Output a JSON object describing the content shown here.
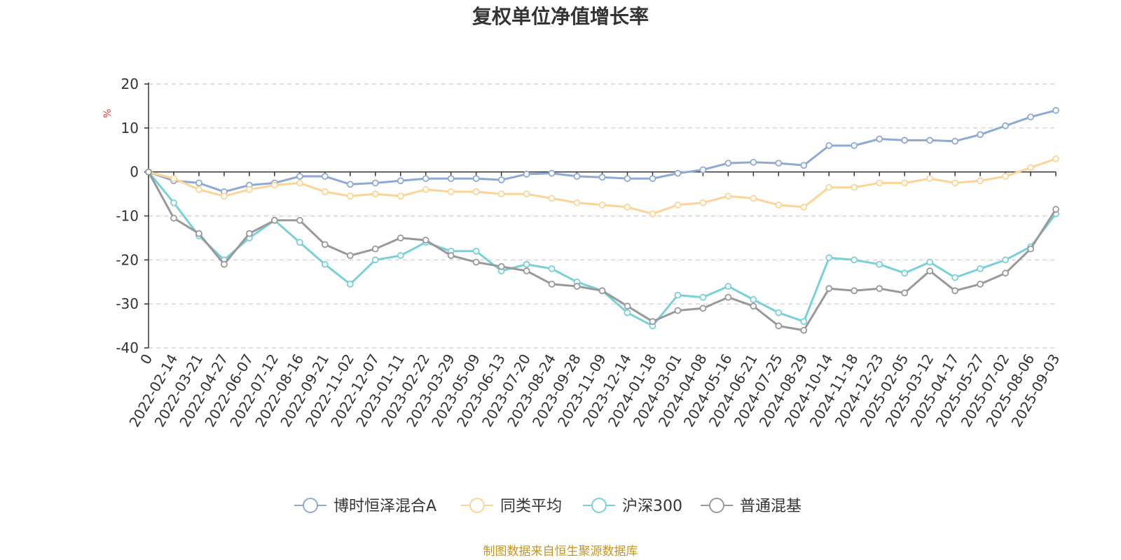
{
  "chart_data": {
    "type": "line",
    "title": "复权单位净值增长率",
    "ylabel": "%",
    "ylim": [
      -40,
      20
    ],
    "yticks": [
      20,
      10,
      0,
      -10,
      -20,
      -30,
      -40
    ],
    "grid": true,
    "legend_position": "bottom",
    "categories": [
      "0",
      "2022-02-14",
      "2022-03-21",
      "2022-04-27",
      "2022-06-07",
      "2022-07-12",
      "2022-08-16",
      "2022-09-21",
      "2022-11-02",
      "2022-12-07",
      "2023-01-11",
      "2023-02-22",
      "2023-03-29",
      "2023-05-09",
      "2023-06-13",
      "2023-07-20",
      "2023-08-24",
      "2023-09-28",
      "2023-11-09",
      "2023-12-14",
      "2024-01-18",
      "2024-03-01",
      "2024-04-08",
      "2024-05-16",
      "2024-06-21",
      "2024-07-25",
      "2024-08-29",
      "2024-10-14",
      "2024-11-18",
      "2024-12-23",
      "2025-02-05",
      "2025-03-12",
      "2025-04-17",
      "2025-05-27",
      "2025-07-02",
      "2025-08-06",
      "2025-09-03"
    ],
    "series": [
      {
        "name": "博时恒泽混合A",
        "color": "#8fa9d6",
        "values": [
          0,
          -2.0,
          -2.5,
          -4.5,
          -3.0,
          -2.5,
          -1.0,
          -1.0,
          -2.8,
          -2.5,
          -2.0,
          -1.5,
          -1.5,
          -1.5,
          -1.8,
          -0.5,
          -0.3,
          -1.0,
          -1.2,
          -1.5,
          -1.5,
          -0.3,
          0.5,
          2.0,
          2.2,
          2.0,
          1.5,
          6.0,
          6.0,
          7.5,
          7.2,
          7.2,
          7.0,
          8.5,
          10.5,
          12.5,
          14.0
        ]
      },
      {
        "name": "同类平均",
        "color": "#fcd596",
        "values": [
          0,
          -1.5,
          -4.0,
          -5.5,
          -4.0,
          -3.0,
          -2.5,
          -4.5,
          -5.5,
          -5.0,
          -5.5,
          -4.0,
          -4.5,
          -4.5,
          -5.0,
          -5.0,
          -6.0,
          -7.0,
          -7.5,
          -8.0,
          -9.5,
          -7.5,
          -7.0,
          -5.5,
          -6.0,
          -7.5,
          -8.0,
          -3.5,
          -3.5,
          -2.5,
          -2.5,
          -1.5,
          -2.5,
          -2.0,
          -1.0,
          1.0,
          3.0
        ]
      },
      {
        "name": "沪深300",
        "color": "#78d1d7",
        "values": [
          0,
          -7.0,
          -14.5,
          -20.0,
          -15.0,
          -11.0,
          -16.0,
          -21.0,
          -25.5,
          -20.0,
          -19.0,
          -16.0,
          -18.0,
          -18.0,
          -22.5,
          -21.0,
          -22.0,
          -25.0,
          -27.0,
          -32.0,
          -35.0,
          -28.0,
          -28.5,
          -26.0,
          -29.0,
          -32.0,
          -34.0,
          -19.5,
          -20.0,
          -21.0,
          -23.0,
          -20.5,
          -24.0,
          -22.0,
          -20.0,
          -17.0,
          -9.5
        ]
      },
      {
        "name": "普通混基",
        "color": "#999999",
        "values": [
          0,
          -10.5,
          -14.0,
          -21.0,
          -14.0,
          -11.0,
          -11.0,
          -16.5,
          -19.0,
          -17.5,
          -15.0,
          -15.5,
          -19.0,
          -20.5,
          -21.5,
          -22.5,
          -25.5,
          -26.0,
          -27.0,
          -30.5,
          -34.0,
          -31.5,
          -31.0,
          -28.5,
          -30.5,
          -35.0,
          -36.0,
          -26.5,
          -27.0,
          -26.5,
          -27.5,
          -22.5,
          -27.0,
          -25.5,
          -23.0,
          -17.5,
          -8.5
        ]
      }
    ]
  },
  "source_note": "制图数据来自恒生聚源数据库"
}
